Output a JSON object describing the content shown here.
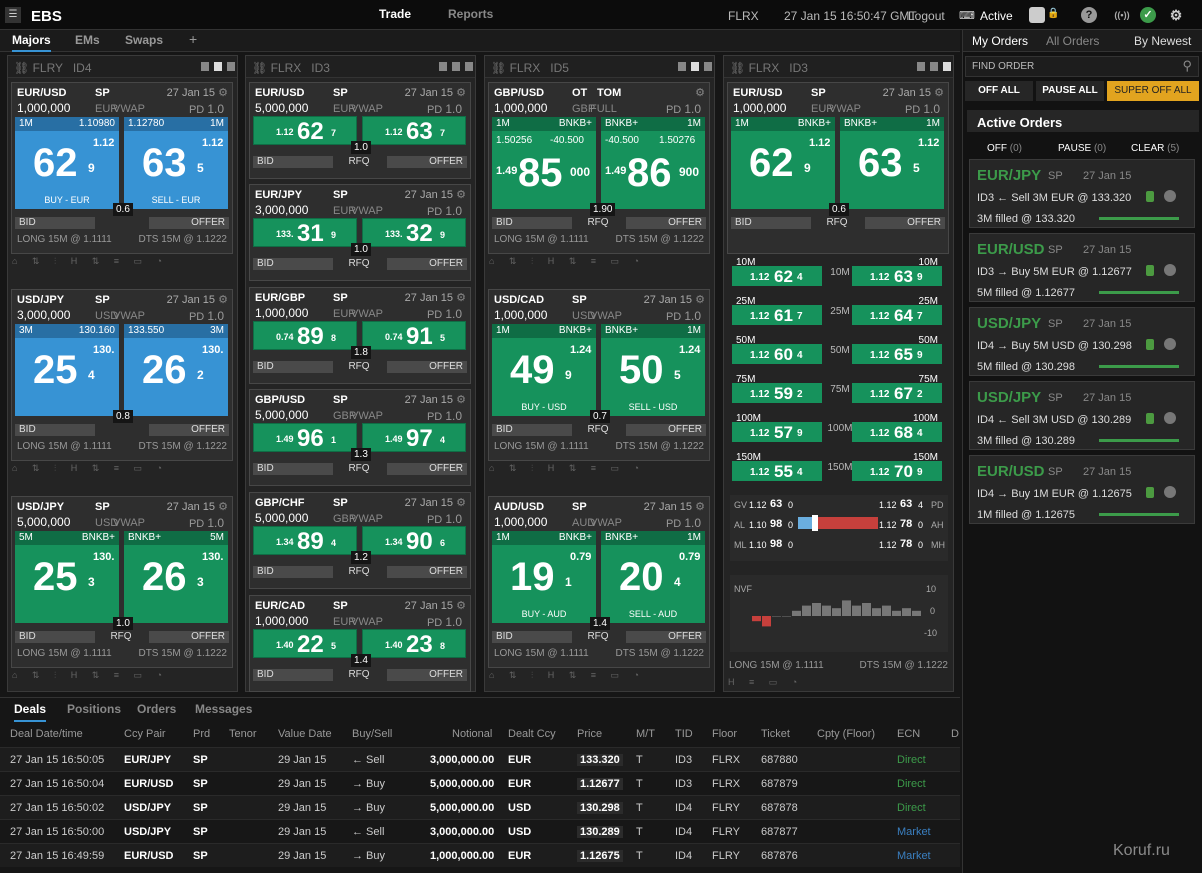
{
  "top": {
    "menu_icon": "menu-icon",
    "logo": "EBS",
    "nav": [
      "Trade",
      "Reports"
    ],
    "floor": "FLRX",
    "datetime": "27 Jan 15 16:50:47 GMT",
    "logout": "Logout",
    "status": "Active"
  },
  "tabs": [
    "Majors",
    "EMs",
    "Swaps",
    "+"
  ],
  "panels": [
    {
      "head": "FLRY",
      "id": "ID4"
    },
    {
      "head": "FLRX",
      "id": "ID3"
    },
    {
      "head": "FLRX",
      "id": "ID5"
    },
    {
      "head": "FLRX",
      "id": "ID3"
    }
  ],
  "tiles": [
    {
      "pair": "EUR/USD",
      "tenor": "SP",
      "date": "27 Jan 15",
      "amount": "1,000,000",
      "ccy": "EUR",
      "algo": "VWAP",
      "pd": "PD",
      "pdv": "1.0",
      "hl": "1M",
      "hm": "1.10980",
      "hml": "1.12780",
      "hr": "1M",
      "bpre": "1.12",
      "bnum": "62",
      "bsup": "9",
      "opre": "1.12",
      "onum": "63",
      "osup": "5",
      "blbl": "BUY - EUR",
      "olbl": "SELL - EUR",
      "spread": "0.6",
      "bid": "BID",
      "offer": "OFFER",
      "long": "LONG 15M @ 1.1111",
      "dts": "DTS 15M @ 1.1222"
    },
    {
      "pair": "USD/JPY",
      "tenor": "SP",
      "date": "27 Jan 15",
      "amount": "3,000,000",
      "ccy": "USD",
      "algo": "VWAP",
      "pd": "PD",
      "pdv": "1.0",
      "hl": "3M",
      "hm": "130.160",
      "hml": "133.550",
      "hr": "3M",
      "bpre": "130.",
      "bnum": "25",
      "bsup": "4",
      "opre": "130.",
      "onum": "26",
      "osup": "2",
      "spread": "0.8",
      "bid": "BID",
      "offer": "OFFER",
      "long": "LONG 15M @ 1.1111",
      "dts": "DTS 15M @ 1.1222"
    },
    {
      "pair": "USD/JPY",
      "tenor": "SP",
      "date": "27 Jan 15",
      "amount": "5,000,000",
      "ccy": "USD",
      "algo": "VWAP",
      "pd": "PD",
      "pdv": "1.0",
      "hl": "5M",
      "hbl": "BNKB+",
      "hbr": "BNKB+",
      "hr": "5M",
      "bpre": "130.",
      "bnum": "25",
      "bsup": "3",
      "opre": "130.",
      "onum": "26",
      "osup": "3",
      "spread": "1.0",
      "bid": "BID",
      "rfq": "RFQ",
      "offer": "OFFER",
      "long": "LONG 15M @ 1.1111",
      "dts": "DTS 15M @ 1.1222"
    },
    {
      "pair": "EUR/USD",
      "tenor": "SP",
      "date": "27 Jan 15",
      "amount": "5,000,000",
      "ccy": "EUR",
      "algo": "VWAP",
      "pd": "PD",
      "pdv": "1.0",
      "bpre": "1.12",
      "bnum": "62",
      "bsup": "7",
      "opre": "1.12",
      "onum": "63",
      "osup": "7",
      "spread": "1.0",
      "bid": "BID",
      "rfq": "RFQ",
      "offer": "OFFER"
    },
    {
      "pair": "EUR/JPY",
      "tenor": "SP",
      "date": "27 Jan 15",
      "amount": "3,000,000",
      "ccy": "EUR",
      "algo": "VWAP",
      "pd": "PD",
      "pdv": "1.0",
      "bpre": "133.",
      "bnum": "31",
      "bsup": "9",
      "opre": "133.",
      "onum": "32",
      "osup": "9",
      "spread": "1.0",
      "bid": "BID",
      "rfq": "RFQ",
      "offer": "OFFER"
    },
    {
      "pair": "EUR/GBP",
      "tenor": "SP",
      "date": "27 Jan 15",
      "amount": "1,000,000",
      "ccy": "EUR",
      "algo": "VWAP",
      "pd": "PD",
      "pdv": "1.0",
      "bpre": "0.74",
      "bnum": "89",
      "bsup": "8",
      "opre": "0.74",
      "onum": "91",
      "osup": "5",
      "spread": "1.8",
      "bid": "BID",
      "rfq": "RFQ",
      "offer": "OFFER"
    },
    {
      "pair": "GBP/USD",
      "tenor": "SP",
      "date": "27 Jan 15",
      "amount": "5,000,000",
      "ccy": "GBP",
      "algo": "VWAP",
      "pd": "PD",
      "pdv": "1.0",
      "bpre": "1.49",
      "bnum": "96",
      "bsup": "1",
      "opre": "1.49",
      "onum": "97",
      "osup": "4",
      "spread": "1.3",
      "bid": "BID",
      "rfq": "RFQ",
      "offer": "OFFER"
    },
    {
      "pair": "GBP/CHF",
      "tenor": "SP",
      "date": "27 Jan 15",
      "amount": "5,000,000",
      "ccy": "GBP",
      "algo": "VWAP",
      "pd": "PD",
      "pdv": "1.0",
      "bpre": "1.34",
      "bnum": "89",
      "bsup": "4",
      "opre": "1.34",
      "onum": "90",
      "osup": "6",
      "spread": "1.2",
      "bid": "BID",
      "rfq": "RFQ",
      "offer": "OFFER"
    },
    {
      "pair": "EUR/CAD",
      "tenor": "SP",
      "date": "27 Jan 15",
      "amount": "1,000,000",
      "ccy": "EUR",
      "algo": "VWAP",
      "pd": "PD",
      "pdv": "1.0",
      "bpre": "1.40",
      "bnum": "22",
      "bsup": "5",
      "opre": "1.40",
      "onum": "23",
      "osup": "8",
      "spread": "1.4",
      "bid": "BID",
      "rfq": "RFQ",
      "offer": "OFFER"
    },
    {
      "pair": "GBP/USD",
      "tenor": "OT",
      "tenor2": "TOM",
      "amount": "1,000,000",
      "ccy": "GBP",
      "algo": "FULL",
      "pd": "PD",
      "pdv": "1.0",
      "hl": "1M",
      "hbl": "BNKB+",
      "hbr": "BNKB+",
      "hr": "1M",
      "x1": "1.50256",
      "x2": "-40.500",
      "x3": "-40.500",
      "x4": "1.50276",
      "bpre": "1.49",
      "bnum": "85",
      "bsup": "000",
      "opre": "1.49",
      "onum": "86",
      "osup": "900",
      "spread": "1.90",
      "bid": "BID",
      "rfq": "RFQ",
      "offer": "OFFER",
      "long": "LONG 15M @ 1.1111",
      "dts": "DTS 15M @ 1.1222"
    },
    {
      "pair": "USD/CAD",
      "tenor": "SP",
      "date": "27 Jan 15",
      "amount": "1,000,000",
      "ccy": "USD",
      "algo": "VWAP",
      "pd": "PD",
      "pdv": "1.0",
      "hl": "1M",
      "hbl": "BNKB+",
      "hbr": "BNKB+",
      "hr": "1M",
      "bpre": "1.24",
      "bnum": "49",
      "bsup": "9",
      "opre": "1.24",
      "onum": "50",
      "osup": "5",
      "blbl": "BUY - USD",
      "olbl": "SELL - USD",
      "spread": "0.7",
      "bid": "BID",
      "rfq": "RFQ",
      "offer": "OFFER",
      "long": "LONG 15M @ 1.1111",
      "dts": "DTS 15M @ 1.1222"
    },
    {
      "pair": "AUD/USD",
      "tenor": "SP",
      "date": "27 Jan 15",
      "amount": "1,000,000",
      "ccy": "AUD",
      "algo": "VWAP",
      "pd": "PD",
      "pdv": "1.0",
      "hl": "1M",
      "hbl": "BNKB+",
      "hbr": "BNKB+",
      "hr": "1M",
      "bpre": "0.79",
      "bnum": "19",
      "bsup": "1",
      "opre": "0.79",
      "onum": "20",
      "osup": "4",
      "blbl": "BUY - AUD",
      "olbl": "SELL - AUD",
      "spread": "1.4",
      "bid": "BID",
      "rfq": "RFQ",
      "offer": "OFFER",
      "long": "LONG 15M @ 1.1111",
      "dts": "DTS 15M @ 1.1222"
    },
    {
      "pair": "EUR/USD",
      "tenor": "SP",
      "date": "27 Jan 15",
      "amount": "1,000,000",
      "ccy": "EUR",
      "algo": "VWAP",
      "pd": "PD",
      "pdv": "1.0",
      "hl": "1M",
      "hbl": "BNKB+",
      "hbr": "BNKB+",
      "hr": "1M",
      "bpre": "1.12",
      "bnum": "62",
      "bsup": "9",
      "opre": "1.12",
      "onum": "63",
      "osup": "5",
      "spread": "0.6",
      "bid": "BID",
      "rfq": "RFQ",
      "offer": "OFFER"
    }
  ],
  "ladder": [
    {
      "q": "10M",
      "b1": "1.12",
      "b2": "62",
      "b3": "4",
      "o1": "1.12",
      "o2": "63",
      "o3": "9"
    },
    {
      "q": "25M",
      "b1": "1.12",
      "b2": "61",
      "b3": "7",
      "o1": "1.12",
      "o2": "64",
      "o3": "7"
    },
    {
      "q": "50M",
      "b1": "1.12",
      "b2": "60",
      "b3": "4",
      "o1": "1.12",
      "o2": "65",
      "o3": "9"
    },
    {
      "q": "75M",
      "b1": "1.12",
      "b2": "59",
      "b3": "2",
      "o1": "1.12",
      "o2": "67",
      "o3": "2"
    },
    {
      "q": "100M",
      "b1": "1.12",
      "b2": "57",
      "b3": "9",
      "o1": "1.12",
      "o2": "68",
      "o3": "4"
    },
    {
      "q": "150M",
      "b1": "1.12",
      "b2": "55",
      "b3": "4",
      "o1": "1.12",
      "o2": "70",
      "o3": "9"
    }
  ],
  "gauge": {
    "gv": "GV",
    "gvl": "1.12",
    "gvl2": "63",
    "gvl3": "0",
    "gvr": "1.12",
    "gvr2": "63",
    "gvr3": "4",
    "pd": "PD",
    "al": "AL",
    "all": "1.10",
    "all2": "98",
    "all3": "0",
    "alr": "1.12",
    "alr2": "78",
    "alr3": "0",
    "ah": "AH",
    "ml": "ML",
    "mll": "1.10",
    "mll2": "98",
    "mll3": "0",
    "mlr": "1.12",
    "mlr2": "78",
    "mlr3": "0",
    "mh": "MH"
  },
  "nvf": {
    "label": "NVF",
    "ticks": [
      "10",
      "0",
      "-10"
    ],
    "bars": [
      -2,
      -4,
      0,
      0,
      2,
      4,
      5,
      4,
      3,
      6,
      4,
      5,
      3,
      4,
      2,
      3,
      2
    ]
  },
  "panel4_foot": {
    "long": "LONG 15M @ 1.1111",
    "dts": "DTS 15M @ 1.1222"
  },
  "bottom": {
    "tabs": [
      "Deals",
      "Positions",
      "Orders",
      "Messages"
    ],
    "headers": [
      "Deal Date/time",
      "Ccy Pair",
      "Prd",
      "Tenor",
      "Value Date",
      "Buy/Sell",
      "Notional",
      "Dealt Ccy",
      "Price",
      "M/T",
      "TID",
      "Floor",
      "Ticket",
      "Cpty (Floor)",
      "ECN",
      "D"
    ],
    "rows": [
      [
        "27 Jan 15 16:50:05",
        "EUR/JPY",
        "SP",
        "",
        "29 Jan 15",
        "← Sell",
        "3,000,000.00",
        "EUR",
        "133.320",
        "T",
        "ID3",
        "FLRX",
        "687880",
        "",
        "Direct"
      ],
      [
        "27 Jan 15 16:50:04",
        "EUR/USD",
        "SP",
        "",
        "29 Jan 15",
        "→ Buy",
        "5,000,000.00",
        "EUR",
        "1.12677",
        "T",
        "ID3",
        "FLRX",
        "687879",
        "",
        "Direct"
      ],
      [
        "27 Jan 15 16:50:02",
        "USD/JPY",
        "SP",
        "",
        "29 Jan 15",
        "→ Buy",
        "5,000,000.00",
        "USD",
        "130.298",
        "T",
        "ID4",
        "FLRY",
        "687878",
        "",
        "Direct"
      ],
      [
        "27 Jan 15 16:50:00",
        "USD/JPY",
        "SP",
        "",
        "29 Jan 15",
        "← Sell",
        "3,000,000.00",
        "USD",
        "130.289",
        "T",
        "ID4",
        "FLRY",
        "687877",
        "",
        "Market"
      ],
      [
        "27 Jan 15 16:49:59",
        "EUR/USD",
        "SP",
        "",
        "29 Jan 15",
        "→ Buy",
        "1,000,000.00",
        "EUR",
        "1.12675",
        "T",
        "ID4",
        "FLRY",
        "687876",
        "",
        "Market"
      ]
    ]
  },
  "right": {
    "tabs": [
      "My Orders",
      "All Orders",
      "By Newest"
    ],
    "find": "FIND ORDER",
    "off_all": "OFF ALL",
    "pause_all": "PAUSE ALL",
    "super_off": "SUPER OFF ALL",
    "active_title": "Active Orders",
    "off": "OFF",
    "off_n": "(0)",
    "pause": "PAUSE",
    "pause_n": "(0)",
    "clear": "CLEAR",
    "clear_n": "(5)",
    "orders": [
      {
        "pair": "EUR/JPY",
        "tenor": "SP",
        "date": "27 Jan 15",
        "l1": "ID3 ← Sell 3M EUR @ 133.320",
        "l2": "3M filled @ 133.320"
      },
      {
        "pair": "EUR/USD",
        "tenor": "SP",
        "date": "27 Jan 15",
        "l1": "ID3 → Buy 5M EUR @ 1.12677",
        "l2": "5M filled @ 1.12677"
      },
      {
        "pair": "USD/JPY",
        "tenor": "SP",
        "date": "27 Jan 15",
        "l1": "ID4 → Buy 5M USD @ 130.298",
        "l2": "5M filled @ 130.298"
      },
      {
        "pair": "USD/JPY",
        "tenor": "SP",
        "date": "27 Jan 15",
        "l1": "ID4 ← Sell 3M USD @ 130.289",
        "l2": "3M filled @ 130.289"
      },
      {
        "pair": "EUR/USD",
        "tenor": "SP",
        "date": "27 Jan 15",
        "l1": "ID4 → Buy 1M EUR @ 1.12675",
        "l2": "1M filled @ 1.12675"
      }
    ]
  },
  "watermark": "Koruf.ru",
  "colors": {
    "blue": "#3793d4",
    "green": "#16925c",
    "order_green": "#3c9b4a",
    "super_off": "#e2a41f",
    "red": "#c6403c"
  }
}
